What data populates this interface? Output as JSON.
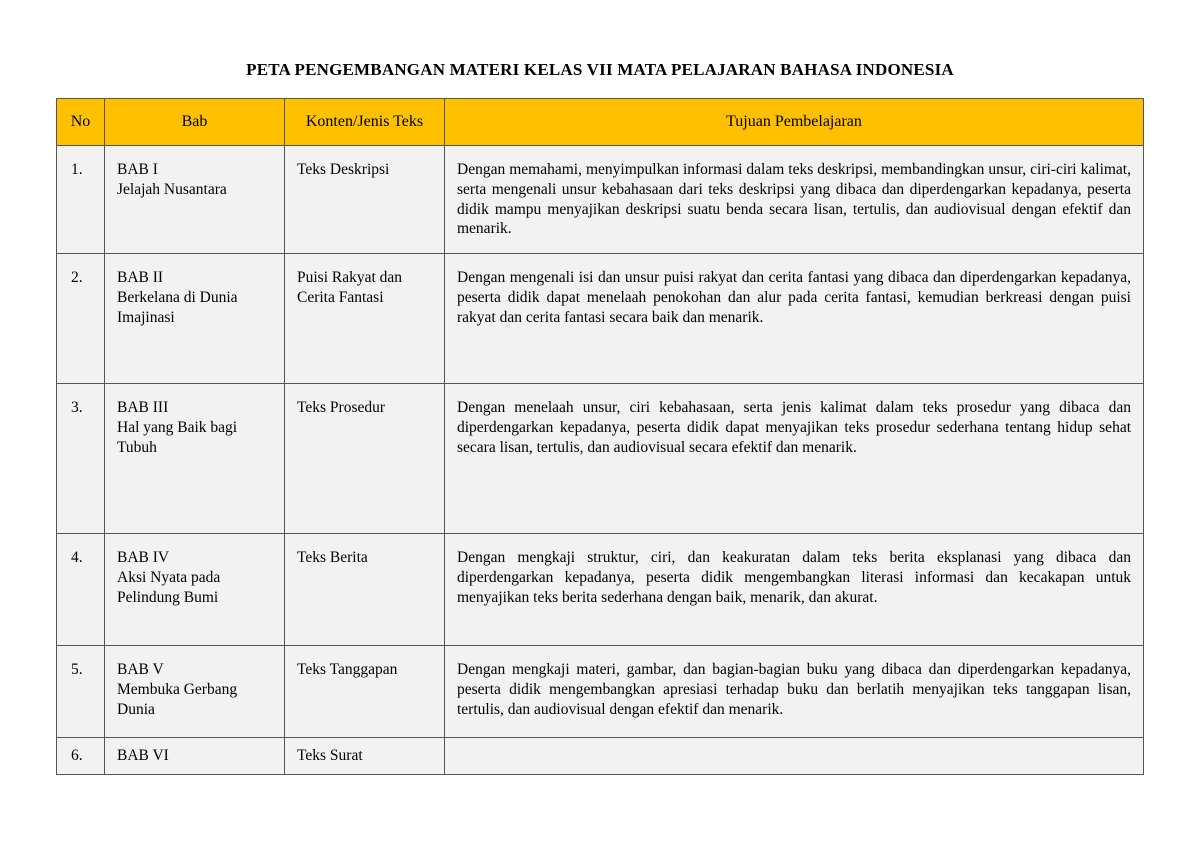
{
  "title": "PETA PENGEMBANGAN MATERI KELAS VII MATA PELAJARAN BAHASA INDONESIA",
  "columns": {
    "no": "No",
    "bab": "Bab",
    "konten": "Konten/Jenis Teks",
    "tujuan": "Tujuan Pembelajaran"
  },
  "colors": {
    "header_bg": "#ffc000",
    "cell_bg": "#f2f2f2",
    "border": "#555555",
    "text": "#000000",
    "page_bg": "#ffffff"
  },
  "rows": [
    {
      "no": "1.",
      "bab_code": "BAB I",
      "bab_title": "Jelajah Nusantara",
      "konten": "Teks Deskripsi",
      "tujuan": "Dengan memahami, menyimpulkan informasi dalam teks deskripsi, membandingkan unsur, ciri-ciri kalimat, serta mengenali unsur kebahasaan dari teks deskripsi yang dibaca dan diperdengarkan kepadanya, peserta didik mampu menyajikan deskripsi suatu benda secara lisan, tertulis, dan audiovisual dengan efektif dan menarik."
    },
    {
      "no": "2.",
      "bab_code": "BAB II",
      "bab_title": "Berkelana di Dunia Imajinasi",
      "konten": "Puisi Rakyat dan Cerita Fantasi",
      "tujuan": "Dengan mengenali isi dan unsur puisi rakyat dan cerita fantasi yang dibaca dan diperdengarkan kepadanya, peserta didik dapat menelaah penokohan dan alur pada cerita fantasi, kemudian berkreasi dengan puisi rakyat dan cerita fantasi secara baik dan menarik."
    },
    {
      "no": "3.",
      "bab_code": "BAB III",
      "bab_title": "Hal yang Baik bagi Tubuh",
      "konten": "Teks Prosedur",
      "tujuan": "Dengan menelaah unsur, ciri kebahasaan, serta jenis kalimat dalam teks prosedur yang dibaca dan diperdengarkan kepadanya, peserta didik dapat menyajikan teks prosedur sederhana tentang hidup sehat secara lisan, tertulis, dan audiovisual secara efektif dan menarik."
    },
    {
      "no": "4.",
      "bab_code": "BAB IV",
      "bab_title": "Aksi Nyata pada Pelindung Bumi",
      "konten": "Teks Berita",
      "tujuan": "Dengan mengkaji struktur, ciri, dan keakuratan dalam teks berita eksplanasi yang dibaca dan diperdengarkan kepadanya, peserta didik mengembangkan literasi informasi dan kecakapan untuk menyajikan teks berita sederhana dengan baik, menarik, dan akurat."
    },
    {
      "no": "5.",
      "bab_code": "BAB V",
      "bab_title": "Membuka Gerbang Dunia",
      "konten": "Teks Tanggapan",
      "tujuan": "Dengan mengkaji materi, gambar, dan bagian-bagian buku yang dibaca dan diperdengarkan kepadanya, peserta didik mengembangkan apresiasi terhadap buku dan berlatih menyajikan teks tanggapan lisan, tertulis, dan audiovisual dengan efektif dan menarik."
    },
    {
      "no": "6.",
      "bab_code": "BAB VI",
      "bab_title": "",
      "konten": "Teks Surat",
      "tujuan": ""
    }
  ]
}
